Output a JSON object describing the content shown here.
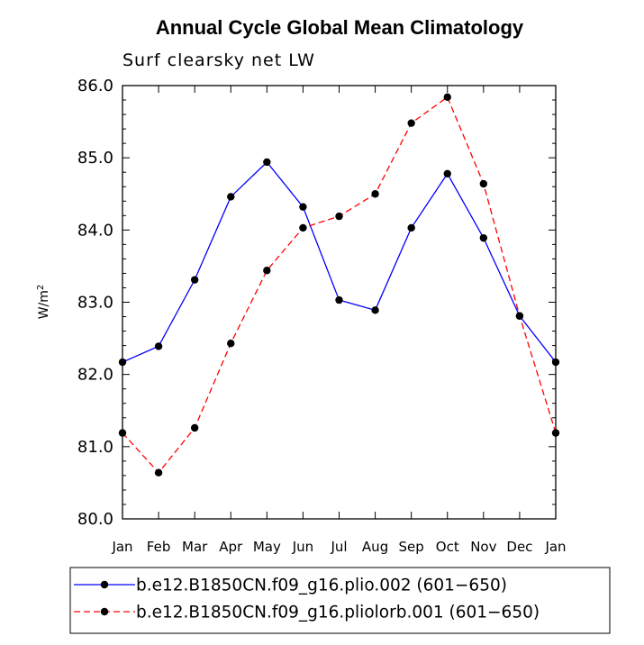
{
  "chart_data": {
    "type": "line",
    "title": "Annual Cycle Global Mean Climatology",
    "subtitle": "Surf clearsky net LW",
    "ylabel_base": "W/m",
    "ylabel_exp": "2",
    "xlabel": "",
    "ylim": [
      80.0,
      86.0
    ],
    "yticks": [
      "80.0",
      "81.0",
      "82.0",
      "83.0",
      "84.0",
      "85.0",
      "86.0"
    ],
    "categories": [
      "Jan",
      "Feb",
      "Mar",
      "Apr",
      "May",
      "Jun",
      "Jul",
      "Aug",
      "Sep",
      "Oct",
      "Nov",
      "Dec",
      "Jan"
    ],
    "series": [
      {
        "name": "b.e12.B1850CN.f09_g16.plio.002 (601−650)",
        "color": "#0000ff",
        "style": "solid",
        "values": [
          82.17,
          82.39,
          83.31,
          84.46,
          84.94,
          84.32,
          83.03,
          82.89,
          84.03,
          84.78,
          83.89,
          82.81,
          82.17
        ]
      },
      {
        "name": "b.e12.B1850CN.f09_g16.pliolorb.001 (601−650)",
        "color": "#ff0000",
        "style": "dashed",
        "values": [
          81.19,
          80.64,
          81.26,
          82.43,
          83.44,
          84.03,
          84.19,
          84.5,
          85.48,
          85.84,
          84.64,
          82.81,
          81.19
        ]
      }
    ],
    "legend_position": "bottom"
  }
}
